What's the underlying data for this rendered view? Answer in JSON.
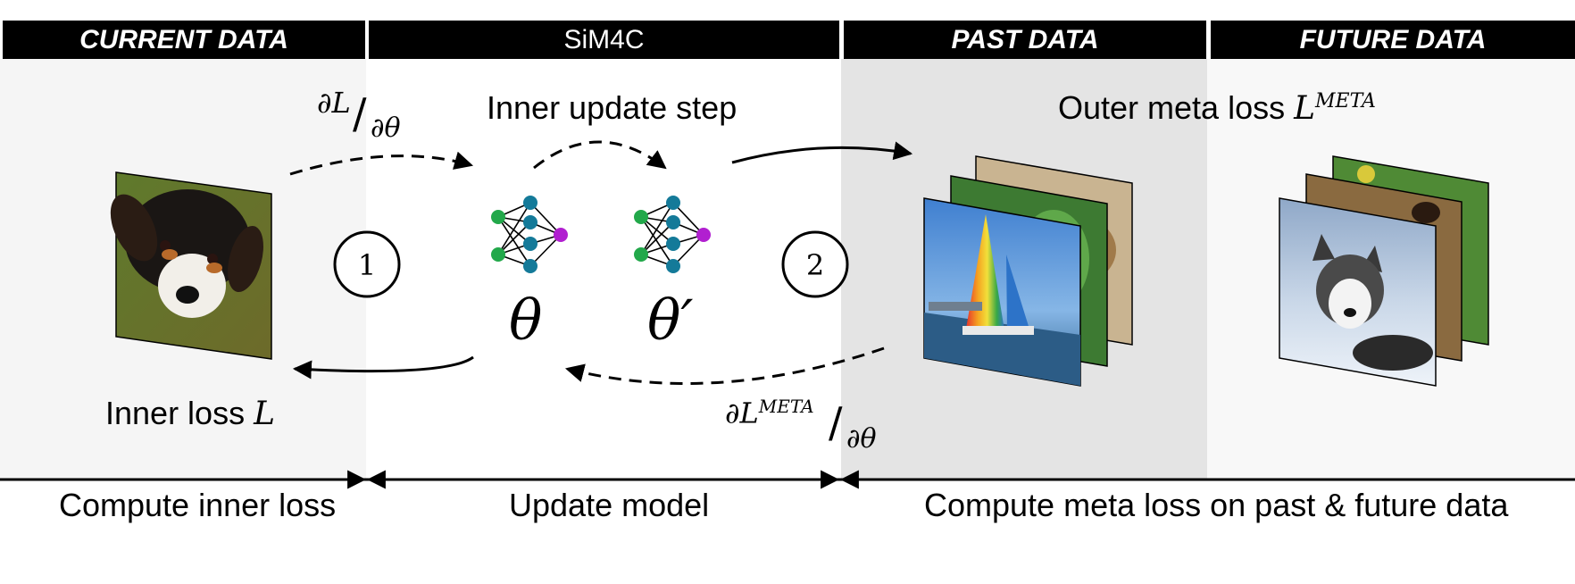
{
  "headers": {
    "current": "CURRENT DATA",
    "method": "SiM4C",
    "past": "PAST DATA",
    "future": "FUTURE DATA"
  },
  "labels": {
    "inner_update": "Inner update step",
    "outer_meta_prefix": "Outer meta loss ",
    "outer_meta_symbol": "L",
    "outer_meta_sup": "META",
    "inner_loss_prefix": "Inner loss ",
    "inner_loss_symbol": "L",
    "grad_inner_num": "∂L",
    "grad_inner_den": "∂θ",
    "grad_meta_num": "∂L",
    "grad_meta_sup": "META",
    "grad_meta_den": "∂θ",
    "theta": "θ",
    "theta_prime": "θ′",
    "step1": "1",
    "step2": "2"
  },
  "timeline": {
    "compute_inner": "Compute inner loss",
    "update_model": "Update model",
    "compute_meta": "Compute meta loss on past & future data"
  },
  "colors": {
    "panel_light": "#f5f5f5",
    "panel_dark": "#e4e4e4",
    "header_bg": "#000000",
    "nn_input": "#22a84a",
    "nn_hidden": "#147a99",
    "nn_output": "#b11fd0"
  }
}
